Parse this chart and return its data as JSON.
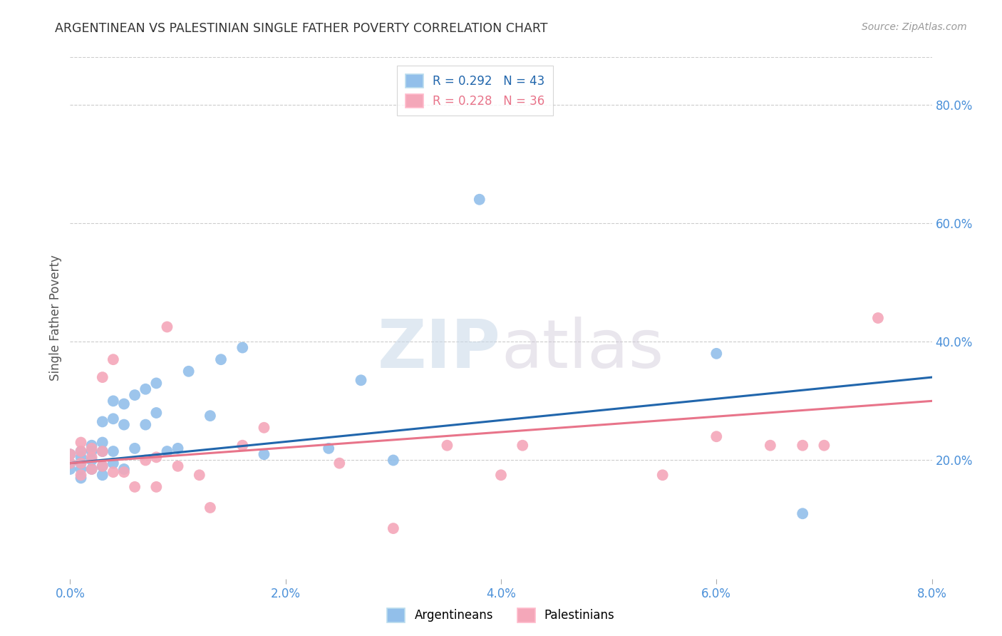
{
  "title": "ARGENTINEAN VS PALESTINIAN SINGLE FATHER POVERTY CORRELATION CHART",
  "source": "Source: ZipAtlas.com",
  "ylabel": "Single Father Poverty",
  "xlim": [
    0.0,
    0.08
  ],
  "ylim": [
    0.0,
    0.88
  ],
  "xtick_vals": [
    0.0,
    0.02,
    0.04,
    0.06,
    0.08
  ],
  "xtick_labels": [
    "0.0%",
    "2.0%",
    "4.0%",
    "6.0%",
    "8.0%"
  ],
  "ytick_vals_right": [
    0.2,
    0.4,
    0.6,
    0.8
  ],
  "ytick_labels_right": [
    "20.0%",
    "40.0%",
    "60.0%",
    "80.0%"
  ],
  "argentinean_R": 0.292,
  "argentinean_N": 43,
  "palestinian_R": 0.228,
  "palestinian_N": 36,
  "argentinean_color": "#92BFEA",
  "palestinian_color": "#F4A7B9",
  "argentinean_line_color": "#2166AC",
  "palestinian_line_color": "#E8748A",
  "watermark_zip": "ZIP",
  "watermark_atlas": "atlas",
  "legend_line1": "R = 0.292   N = 43",
  "legend_line2": "R = 0.228   N = 36",
  "legend_argentineans": "Argentineans",
  "legend_palestinians": "Palestinians",
  "argentinean_x": [
    0.0,
    0.0,
    0.0,
    0.001,
    0.001,
    0.001,
    0.001,
    0.001,
    0.002,
    0.002,
    0.002,
    0.002,
    0.003,
    0.003,
    0.003,
    0.003,
    0.003,
    0.004,
    0.004,
    0.004,
    0.004,
    0.005,
    0.005,
    0.005,
    0.006,
    0.006,
    0.007,
    0.007,
    0.008,
    0.008,
    0.009,
    0.01,
    0.011,
    0.013,
    0.014,
    0.016,
    0.018,
    0.024,
    0.027,
    0.03,
    0.038,
    0.06,
    0.068
  ],
  "argentinean_y": [
    0.185,
    0.195,
    0.21,
    0.17,
    0.185,
    0.195,
    0.205,
    0.215,
    0.185,
    0.2,
    0.215,
    0.225,
    0.175,
    0.19,
    0.215,
    0.23,
    0.265,
    0.195,
    0.215,
    0.27,
    0.3,
    0.185,
    0.26,
    0.295,
    0.22,
    0.31,
    0.26,
    0.32,
    0.28,
    0.33,
    0.215,
    0.22,
    0.35,
    0.275,
    0.37,
    0.39,
    0.21,
    0.22,
    0.335,
    0.2,
    0.64,
    0.38,
    0.11
  ],
  "palestinian_x": [
    0.0,
    0.0,
    0.001,
    0.001,
    0.001,
    0.001,
    0.002,
    0.002,
    0.002,
    0.003,
    0.003,
    0.003,
    0.004,
    0.004,
    0.005,
    0.006,
    0.007,
    0.008,
    0.008,
    0.009,
    0.01,
    0.012,
    0.013,
    0.016,
    0.018,
    0.025,
    0.03,
    0.035,
    0.04,
    0.042,
    0.055,
    0.06,
    0.065,
    0.068,
    0.07,
    0.075
  ],
  "palestinian_y": [
    0.195,
    0.21,
    0.175,
    0.195,
    0.215,
    0.23,
    0.185,
    0.205,
    0.22,
    0.19,
    0.215,
    0.34,
    0.18,
    0.37,
    0.18,
    0.155,
    0.2,
    0.155,
    0.205,
    0.425,
    0.19,
    0.175,
    0.12,
    0.225,
    0.255,
    0.195,
    0.085,
    0.225,
    0.175,
    0.225,
    0.175,
    0.24,
    0.225,
    0.225,
    0.225,
    0.44
  ],
  "trend_arg_x0": 0.0,
  "trend_arg_y0": 0.195,
  "trend_arg_x1": 0.08,
  "trend_arg_y1": 0.34,
  "trend_pal_x0": 0.0,
  "trend_pal_y0": 0.195,
  "trend_pal_x1": 0.08,
  "trend_pal_y1": 0.3
}
